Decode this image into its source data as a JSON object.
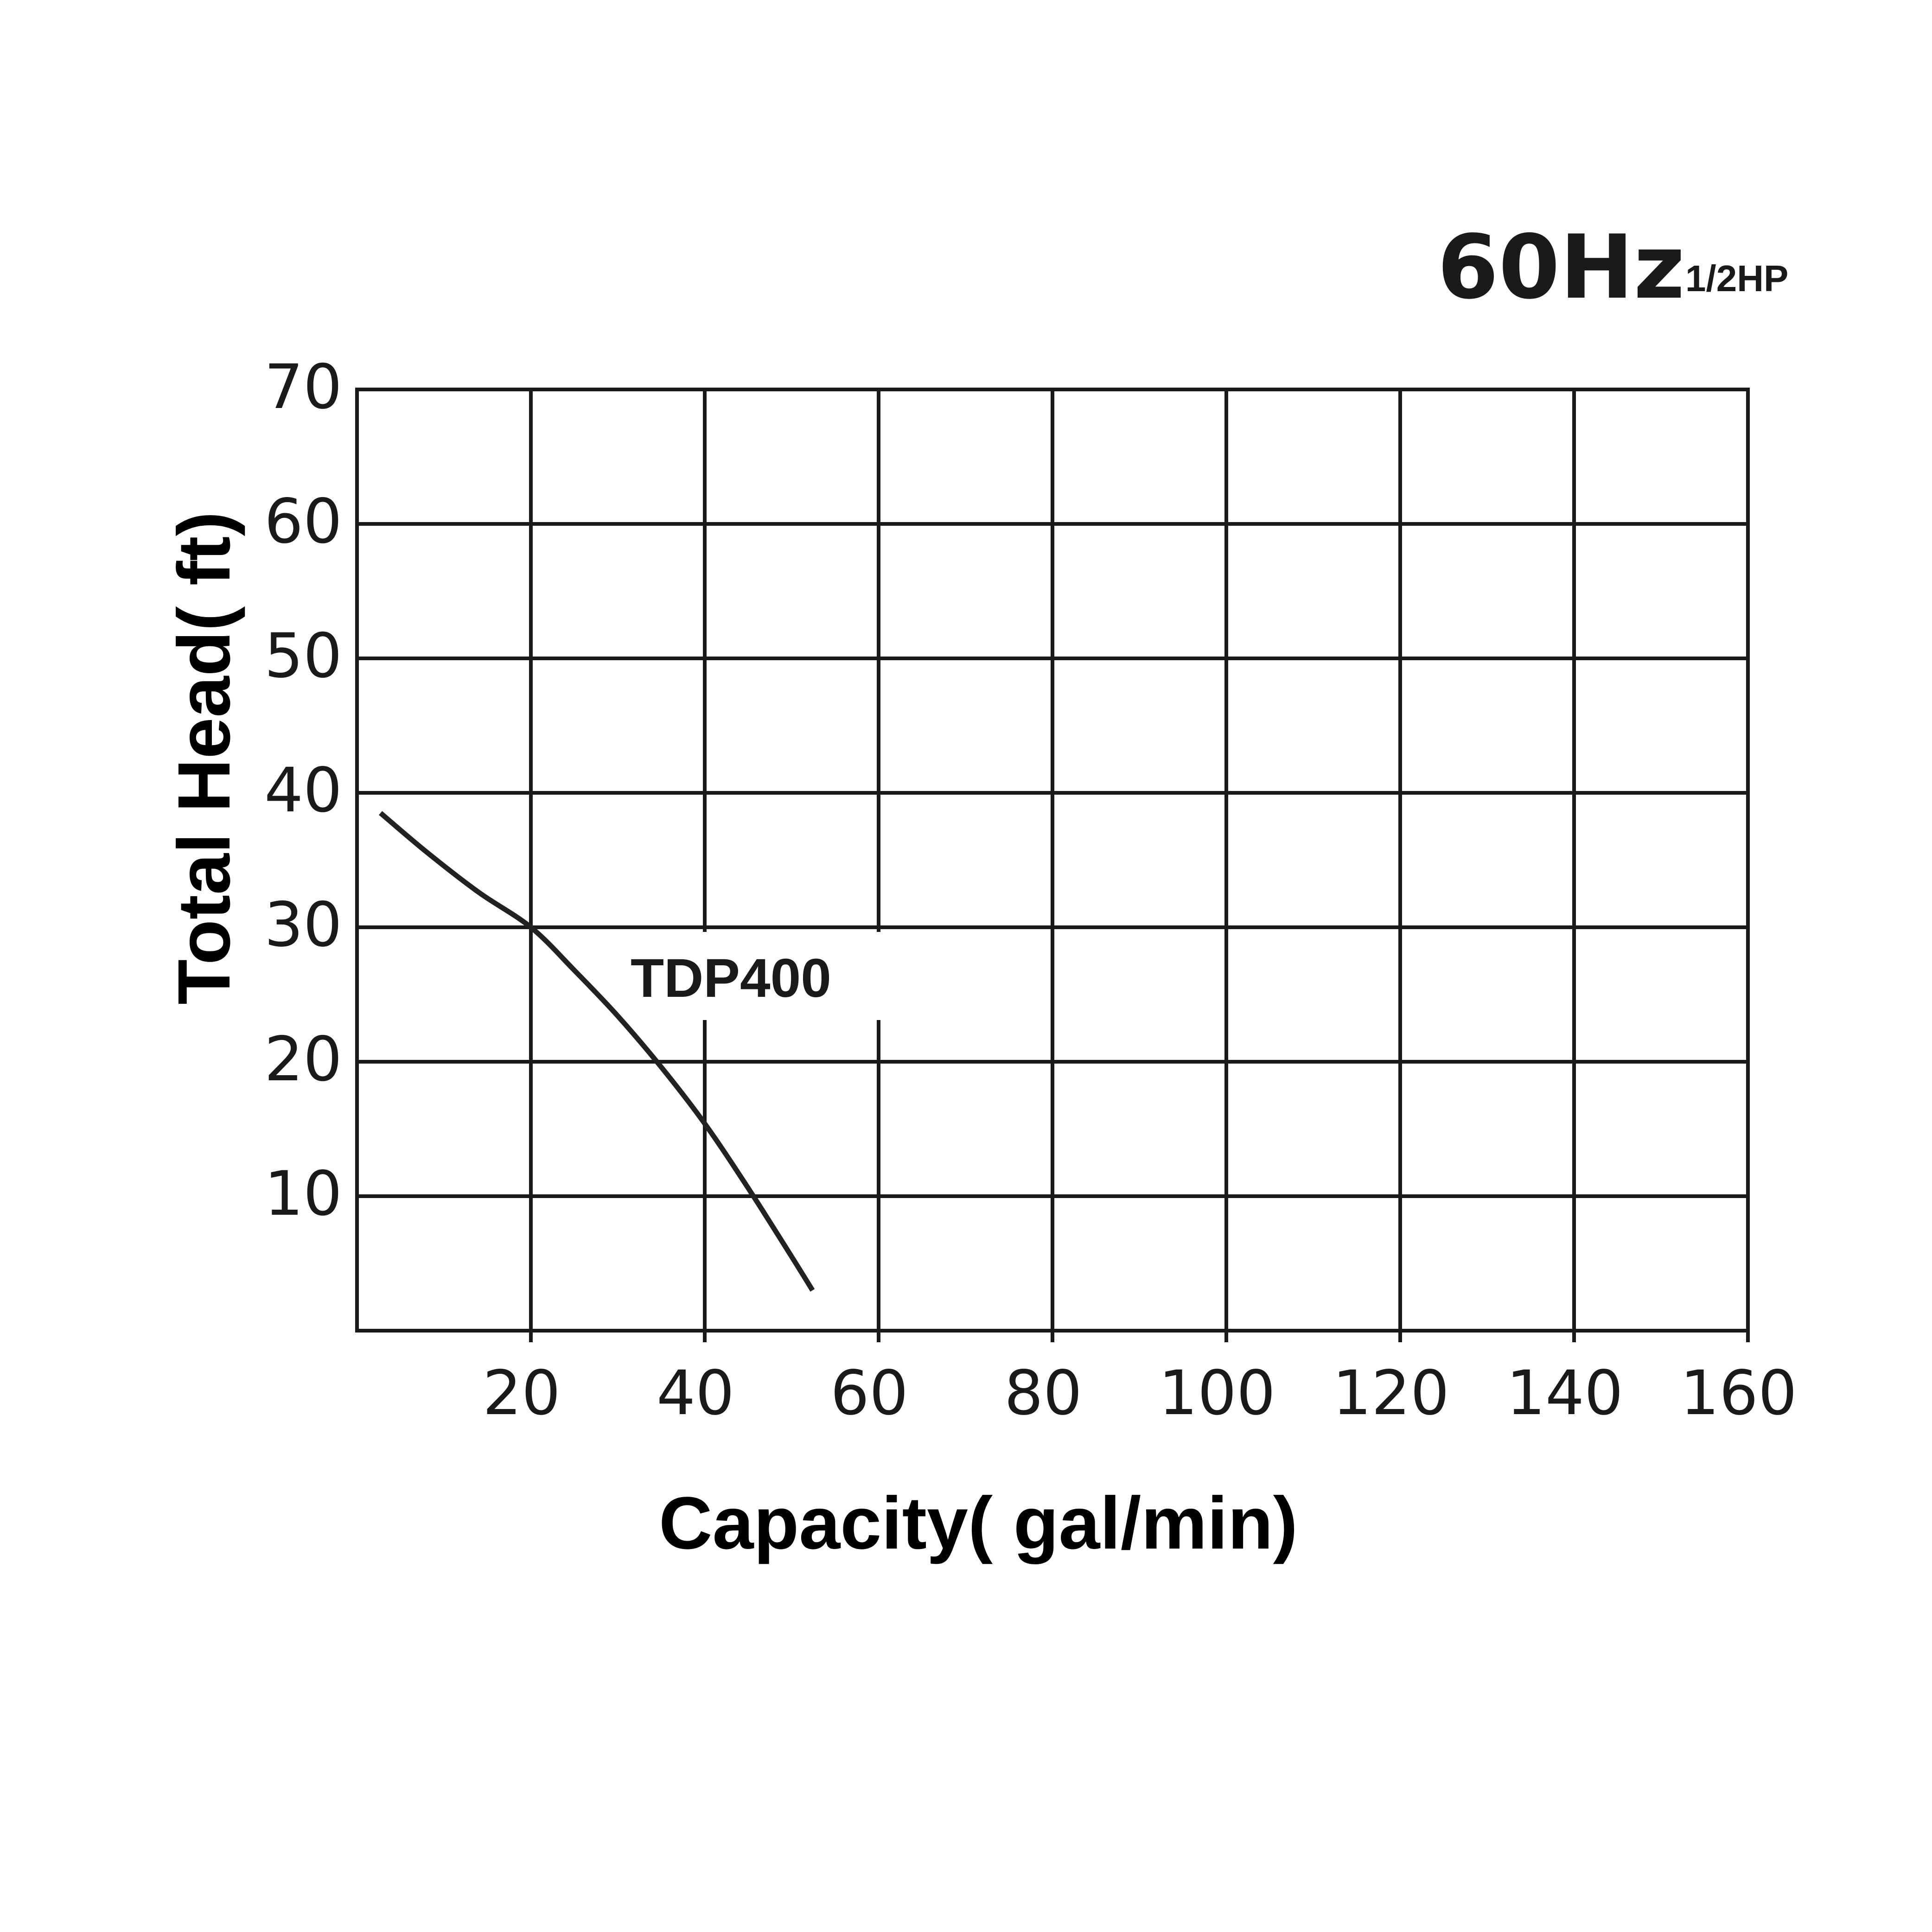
{
  "chart_data": {
    "type": "line",
    "title": "60Hz",
    "subtitle": "1/2HP",
    "xlabel": "Capacity( gal/min)",
    "ylabel": "Total Head( ft)",
    "xlim": [
      0,
      160
    ],
    "ylim": [
      0,
      70
    ],
    "x_ticks": [
      20,
      40,
      60,
      80,
      100,
      120,
      140,
      160
    ],
    "y_ticks": [
      10,
      20,
      30,
      40,
      50,
      60,
      70
    ],
    "grid": true,
    "series": [
      {
        "name": "TDP400",
        "x": [
          2.7,
          8,
          14,
          20,
          25,
          30,
          35,
          40,
          45,
          50,
          52.4
        ],
        "y": [
          38.5,
          35.6,
          32.6,
          30.0,
          26.8,
          23.4,
          19.6,
          15.4,
          10.6,
          5.5,
          3.0
        ]
      }
    ]
  }
}
